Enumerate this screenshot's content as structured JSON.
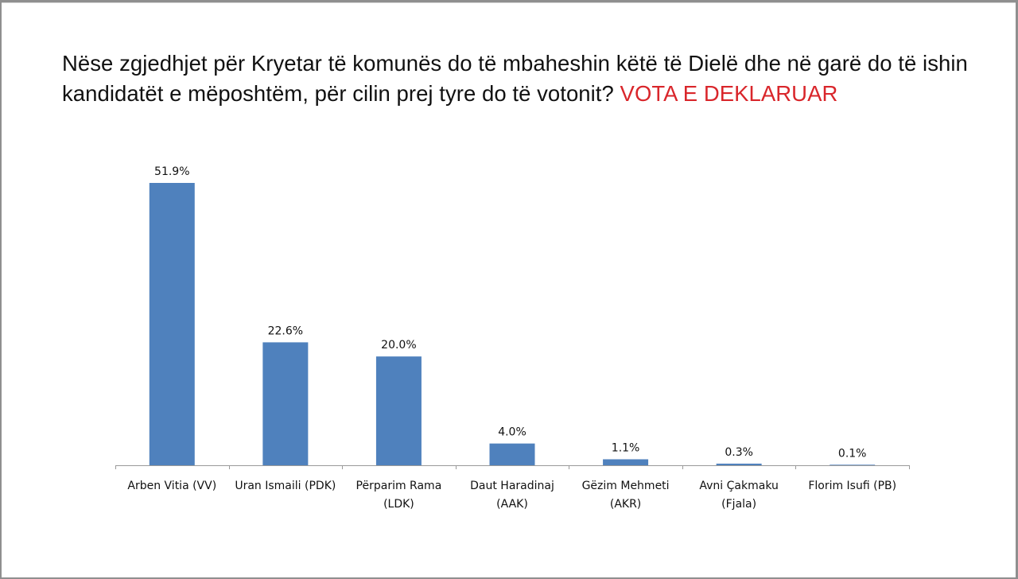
{
  "chart_data": {
    "type": "bar",
    "title": "Nëse zgjedhjet për Kryetar të komunës do të mbaheshin këtë të Dielë dhe në garë do të ishin kandidatët e mëposhtëm, për cilin prej tyre do të votonit?",
    "title_accent": "VOTA E DEKLARUAR",
    "title_accent_color": "#d9262b",
    "bar_color": "#4f81bd",
    "categories": [
      [
        "Arben Vitia (VV)"
      ],
      [
        "Uran Ismaili (PDK)"
      ],
      [
        "Përparim Rama",
        "(LDK)"
      ],
      [
        "Daut Haradinaj",
        "(AAK)"
      ],
      [
        "Gëzim Mehmeti",
        "(AKR)"
      ],
      [
        "Avni Çakmaku",
        "(Fjala)"
      ],
      [
        "Florim Isufi (PB)"
      ]
    ],
    "values": [
      51.9,
      22.6,
      20.0,
      4.0,
      1.1,
      0.3,
      0.1
    ],
    "value_labels": [
      "51.9%",
      "22.6%",
      "20.0%",
      "4.0%",
      "1.1%",
      "0.3%",
      "0.1%"
    ],
    "xlabel": "",
    "ylabel": "",
    "ylim": [
      0,
      55
    ],
    "grid": false,
    "legend": "none"
  }
}
